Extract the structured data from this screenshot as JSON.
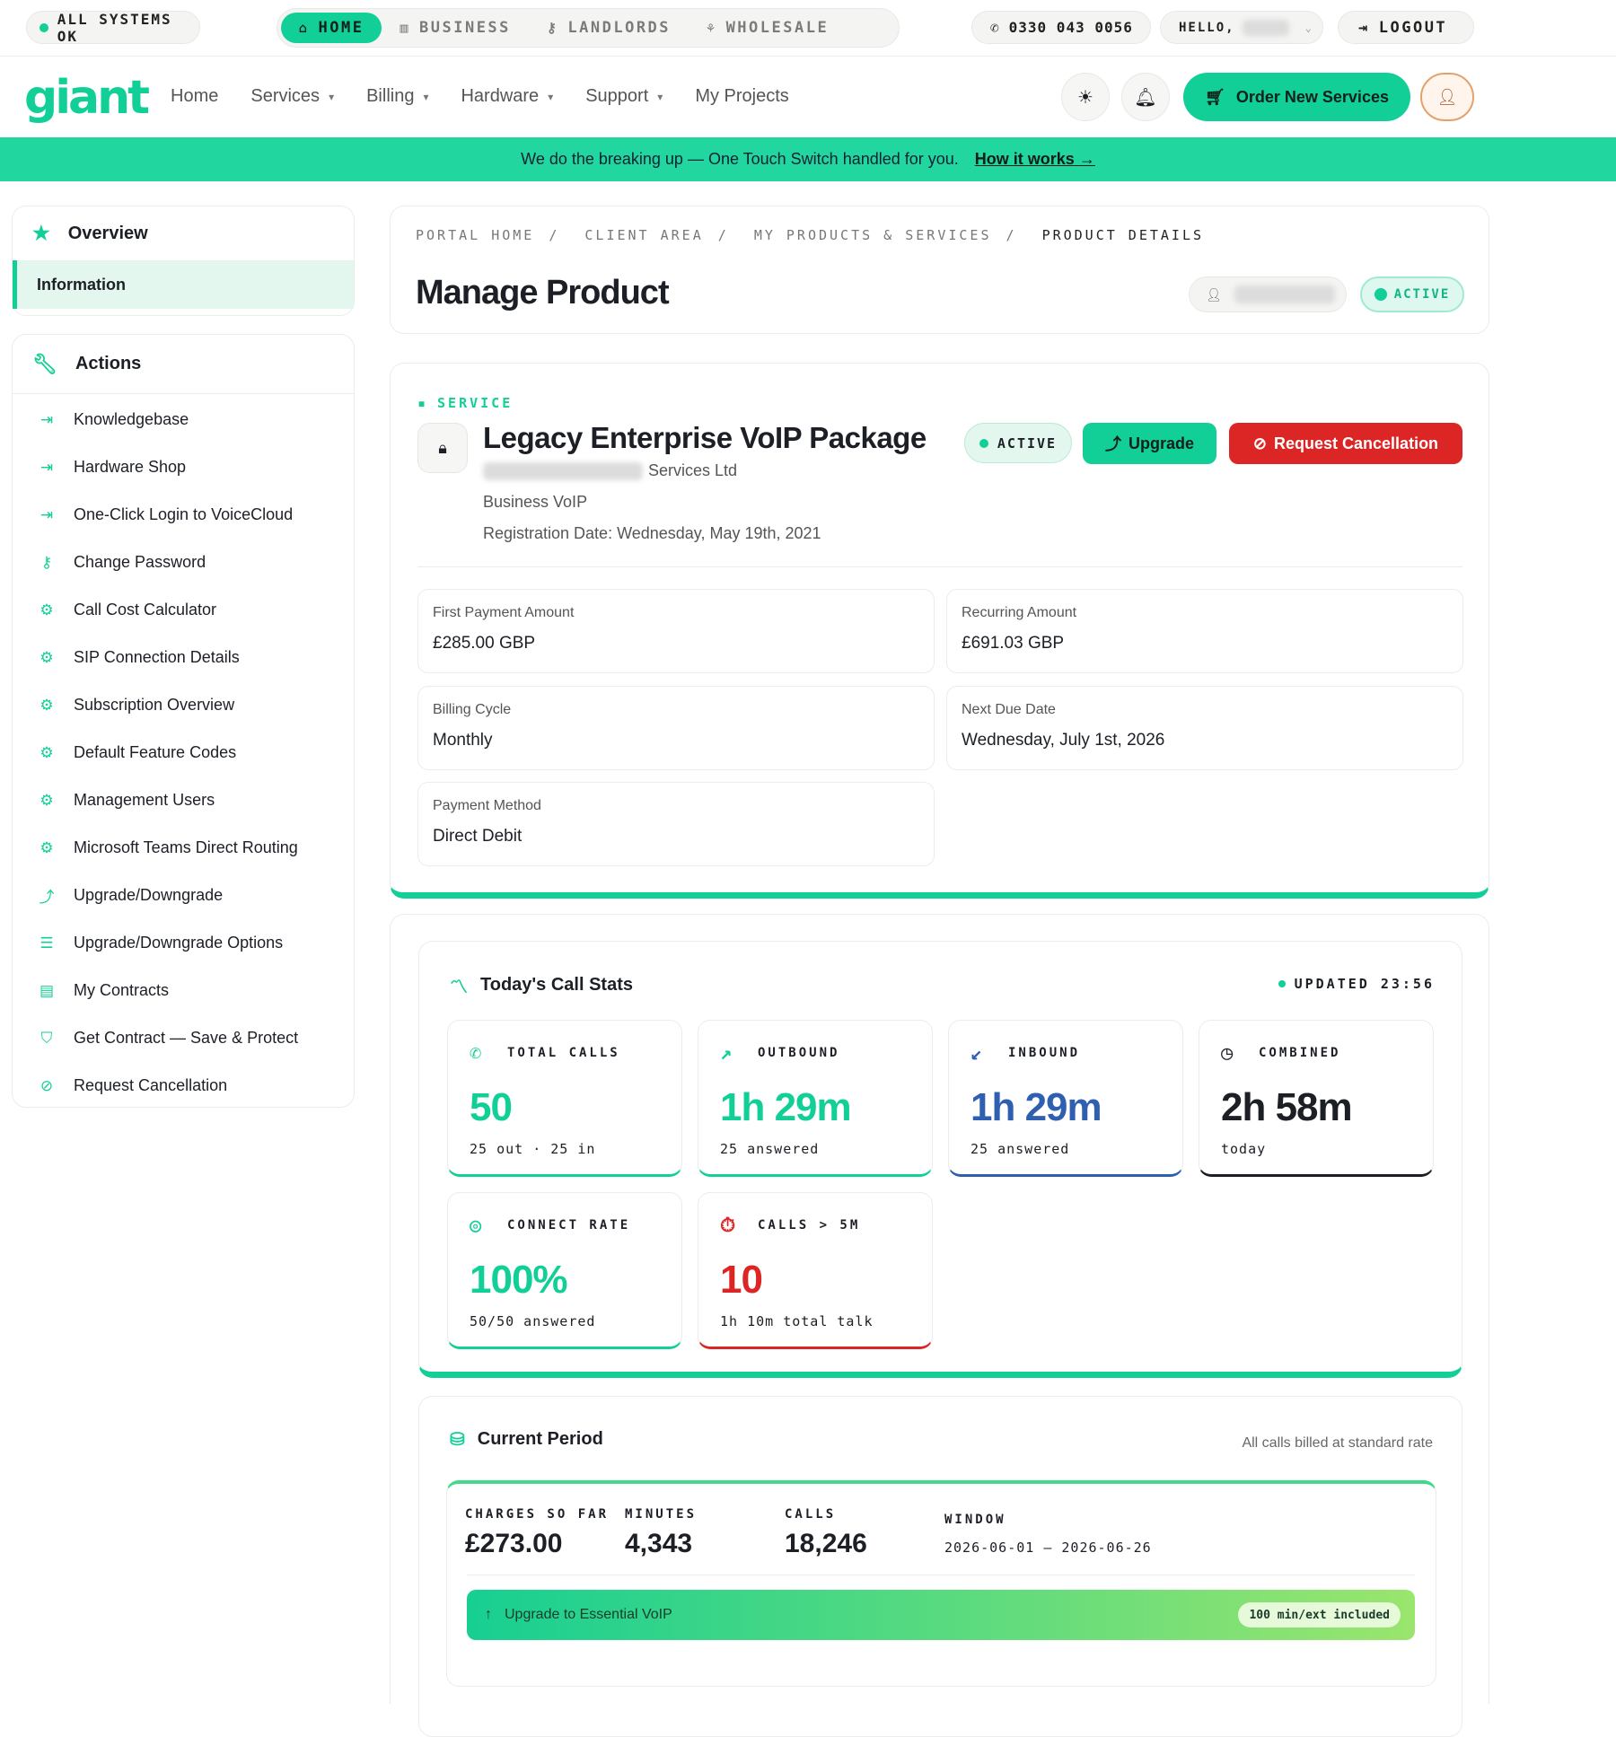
{
  "topbar": {
    "status": "ALL SYSTEMS OK",
    "tabs": [
      {
        "label": "HOME",
        "icon": "home-icon"
      },
      {
        "label": "BUSINESS",
        "icon": "building-icon"
      },
      {
        "label": "LANDLORDS",
        "icon": "key-icon"
      },
      {
        "label": "WHOLESALE",
        "icon": "network-icon"
      }
    ],
    "phone": "0330 043 0056",
    "hello": "HELLO,",
    "logout": "LOGOUT"
  },
  "nav": {
    "logo": "giant",
    "items": [
      "Home",
      "Services",
      "Billing",
      "Hardware",
      "Support",
      "My Projects"
    ],
    "order": "Order New Services"
  },
  "banner": {
    "text": "We do the breaking up — One Touch Switch handled for you.",
    "link": "How it works"
  },
  "sidebar": {
    "overview": "Overview",
    "selected": "Information",
    "actions_title": "Actions",
    "actions": [
      {
        "label": "Knowledgebase",
        "icon": "login-icon"
      },
      {
        "label": "Hardware Shop",
        "icon": "login-icon"
      },
      {
        "label": "One-Click Login to VoiceCloud",
        "icon": "login-icon"
      },
      {
        "label": "Change Password",
        "icon": "key-icon"
      },
      {
        "label": "Call Cost Calculator",
        "icon": "cogs-icon"
      },
      {
        "label": "SIP Connection Details",
        "icon": "cogs-icon"
      },
      {
        "label": "Subscription Overview",
        "icon": "cogs-icon"
      },
      {
        "label": "Default Feature Codes",
        "icon": "cogs-icon"
      },
      {
        "label": "Management Users",
        "icon": "cogs-icon"
      },
      {
        "label": "Microsoft Teams Direct Routing",
        "icon": "cogs-icon"
      },
      {
        "label": "Upgrade/Downgrade",
        "icon": "upgrade-icon"
      },
      {
        "label": "Upgrade/Downgrade Options",
        "icon": "list-icon"
      },
      {
        "label": "My Contracts",
        "icon": "document-icon"
      },
      {
        "label": "Get Contract — Save & Protect",
        "icon": "shield-icon"
      },
      {
        "label": "Request Cancellation",
        "icon": "ban-icon"
      }
    ]
  },
  "header": {
    "breadcrumb": [
      "PORTAL HOME",
      "CLIENT AREA",
      "MY PRODUCTS & SERVICES",
      "PRODUCT DETAILS"
    ],
    "title": "Manage Product",
    "status": "ACTIVE"
  },
  "service": {
    "label": "SERVICE",
    "name": "Legacy Enterprise VoIP Package",
    "company_suffix": "Services Ltd",
    "type": "Business VoIP",
    "registration": "Registration Date: Wednesday, May 19th, 2021",
    "status": "ACTIVE",
    "upgrade": "Upgrade",
    "cancel": "Request Cancellation",
    "details": [
      {
        "label": "First Payment Amount",
        "value": "£285.00 GBP"
      },
      {
        "label": "Recurring Amount",
        "value": "£691.03 GBP"
      },
      {
        "label": "Billing Cycle",
        "value": "Monthly"
      },
      {
        "label": "Next Due Date",
        "value": "Wednesday, July 1st, 2026"
      },
      {
        "label": "Payment Method",
        "value": "Direct Debit"
      }
    ]
  },
  "stats": {
    "title": "Today's Call Stats",
    "updated": "UPDATED 23:56",
    "cards": [
      {
        "label": "TOTAL CALLS",
        "value": "50",
        "sub": "25 out · 25 in",
        "color": "#12cf97"
      },
      {
        "label": "OUTBOUND",
        "value": "1h 29m",
        "sub": "25 answered",
        "color": "#12cf97"
      },
      {
        "label": "INBOUND",
        "value": "1h 29m",
        "sub": "25 answered",
        "color": "#2f5fb0"
      },
      {
        "label": "COMBINED",
        "value": "2h 58m",
        "sub": "today",
        "color": "#1c1f26"
      },
      {
        "label": "CONNECT RATE",
        "value": "100%",
        "sub": "50/50 answered",
        "color": "#12cf97"
      },
      {
        "label": "CALLS > 5M",
        "value": "10",
        "sub": "1h 10m total talk",
        "color": "#dc2626"
      }
    ]
  },
  "period": {
    "title": "Current Period",
    "note": "All calls billed at standard rate",
    "charges_label": "CHARGES SO FAR",
    "charges": "£273.00",
    "minutes_label": "MINUTES",
    "minutes": "4,343",
    "calls_label": "CALLS",
    "calls": "18,246",
    "window_label": "WINDOW",
    "window": "2026-06-01 — 2026-06-26",
    "upgrade_text": "Upgrade to  Essential VoIP",
    "upgrade_tag": "100 min/ext included"
  }
}
